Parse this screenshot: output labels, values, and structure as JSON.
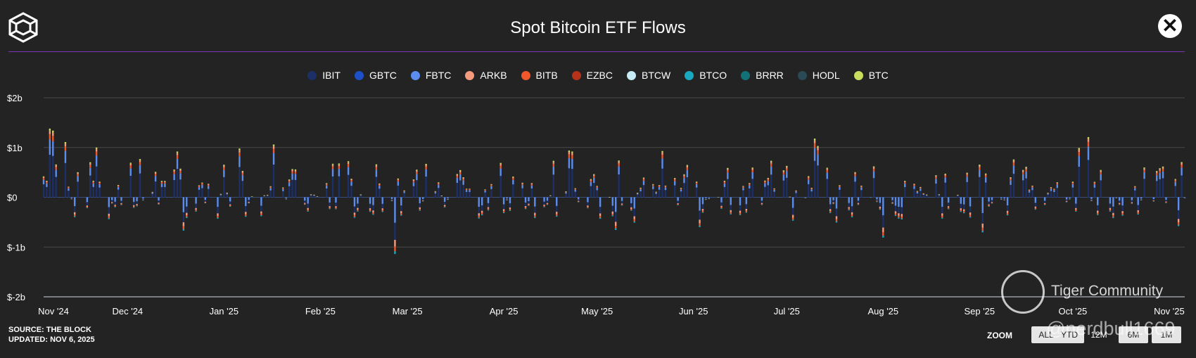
{
  "header": {
    "title": "Spot Bitcoin ETF Flows",
    "logo_icon": "the-block-cube-icon",
    "close_icon": "close-icon"
  },
  "footer": {
    "source": "SOURCE: THE BLOCK",
    "updated": "UPDATED: NOV 6, 2025"
  },
  "zoom": {
    "label": "ZOOM",
    "options": [
      "ALL",
      "YTD",
      "12M",
      "6M",
      "1M"
    ],
    "selected": "12M"
  },
  "watermark": {
    "brand": "Tiger Community",
    "handle": "@nerdbull1669"
  },
  "chart_data": {
    "type": "bar",
    "stacked": true,
    "title": "Spot Bitcoin ETF Flows",
    "y_ticks": [
      "$2b",
      "$1b",
      "$0",
      "$-1b",
      "$-2b"
    ],
    "ylim": [
      -2,
      2
    ],
    "y_unit": "billion USD",
    "x_ticks": [
      "Nov '24",
      "Dec '24",
      "Jan '25",
      "Feb '25",
      "Mar '25",
      "Apr '25",
      "May '25",
      "Jun '25",
      "Jul '25",
      "Aug '25",
      "Sep '25",
      "Oct '25",
      "Nov '25"
    ],
    "legend_position": "top-center",
    "grid": true,
    "series": [
      {
        "name": "IBIT",
        "color": "#1c2f66"
      },
      {
        "name": "GBTC",
        "color": "#1e4fc9"
      },
      {
        "name": "FBTC",
        "color": "#5b8def"
      },
      {
        "name": "ARKB",
        "color": "#f49b7c"
      },
      {
        "name": "BITB",
        "color": "#f0582b"
      },
      {
        "name": "EZBC",
        "color": "#b6321a"
      },
      {
        "name": "BTCW",
        "color": "#c6ecf8"
      },
      {
        "name": "BTCO",
        "color": "#1aa8c0"
      },
      {
        "name": "BRRR",
        "color": "#127078"
      },
      {
        "name": "HODL",
        "color": "#2a4a55"
      },
      {
        "name": "BTC",
        "color": "#c9dd5e"
      }
    ],
    "daily_totals": [
      {
        "date": "2024-11-06",
        "v": 1.38
      },
      {
        "date": "2024-11-07",
        "v": 1.34
      },
      {
        "date": "2024-11-11",
        "v": 1.11
      },
      {
        "date": "2024-11-14",
        "v": -0.4
      },
      {
        "date": "2024-11-21",
        "v": 1.0
      },
      {
        "date": "2024-11-25",
        "v": -0.44
      },
      {
        "date": "2024-12-05",
        "v": 0.77
      },
      {
        "date": "2024-12-17",
        "v": 0.92
      },
      {
        "date": "2024-12-19",
        "v": -0.67
      },
      {
        "date": "2024-12-30",
        "v": -0.43
      },
      {
        "date": "2025-01-06",
        "v": 0.98
      },
      {
        "date": "2025-01-17",
        "v": 1.06
      },
      {
        "date": "2025-01-24",
        "v": 0.56
      },
      {
        "date": "2025-02-06",
        "v": -0.24
      },
      {
        "date": "2025-02-25",
        "v": -1.14
      },
      {
        "date": "2025-03-03",
        "v": 0.36
      },
      {
        "date": "2025-04-22",
        "v": 0.94
      },
      {
        "date": "2025-04-23",
        "v": 0.92
      },
      {
        "date": "2025-05-22",
        "v": 0.93
      },
      {
        "date": "2025-06-03",
        "v": -0.6
      },
      {
        "date": "2025-07-10",
        "v": 1.18
      },
      {
        "date": "2025-07-11",
        "v": 1.03
      },
      {
        "date": "2025-08-01",
        "v": -0.81
      },
      {
        "date": "2025-09-12",
        "v": 0.76
      },
      {
        "date": "2025-10-03",
        "v": 0.99
      },
      {
        "date": "2025-10-06",
        "v": 1.21
      },
      {
        "date": "2025-10-17",
        "v": -0.37
      },
      {
        "date": "2025-11-04",
        "v": -0.58
      }
    ]
  }
}
